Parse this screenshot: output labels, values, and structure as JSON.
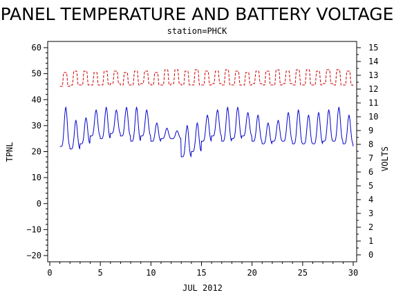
{
  "chart_data": {
    "type": "line",
    "title": "PANEL TEMPERATURE AND BATTERY VOLTAGE",
    "subtitle": "station=PHCK",
    "xlabel": "JUL 2012",
    "ylabel_left": "TPNL",
    "ylabel_right": "VOLTS",
    "xlim": [
      0,
      30
    ],
    "ylim_left": [
      -20,
      60
    ],
    "ylim_right": [
      0,
      15
    ],
    "x_ticks": [
      0,
      5,
      10,
      15,
      20,
      25,
      30
    ],
    "y_ticks_left": [
      -20,
      -10,
      0,
      10,
      20,
      30,
      40,
      50,
      60
    ],
    "y_ticks_right": [
      0,
      1,
      2,
      3,
      4,
      5,
      6,
      7,
      8,
      9,
      10,
      11,
      12,
      13,
      14,
      15
    ],
    "grid": false,
    "legend": "none",
    "series": [
      {
        "axis": "left",
        "color": "#0000cc",
        "style": "solid",
        "days_start": 1,
        "days_end": 30,
        "daily_min": [
          22,
          21,
          23,
          26,
          25,
          27,
          26,
          24,
          26,
          24,
          25,
          25,
          18,
          20,
          24,
          26,
          24,
          25,
          26,
          24,
          23,
          24,
          24,
          23,
          23,
          23,
          24,
          24,
          23,
          22
        ],
        "daily_max": [
          37,
          32,
          33,
          36,
          37,
          36,
          37,
          37,
          36,
          31,
          29,
          28,
          30,
          31,
          34,
          36,
          37,
          37,
          35,
          34,
          31,
          32,
          35,
          36,
          34,
          35,
          36,
          37,
          34,
          34
        ]
      },
      {
        "axis": "right",
        "color": "#cc0000",
        "style": "dashed",
        "days_start": 1,
        "days_end": 30,
        "daily_min": [
          12.2,
          12.3,
          12.3,
          12.3,
          12.3,
          12.4,
          12.3,
          12.3,
          12.4,
          12.3,
          12.3,
          12.4,
          12.3,
          12.3,
          12.3,
          12.4,
          12.3,
          12.3,
          12.3,
          12.4,
          12.3,
          12.3,
          12.4,
          12.3,
          12.3,
          12.3,
          12.4,
          12.3,
          12.3,
          12.2
        ],
        "daily_max": [
          13.2,
          13.3,
          13.3,
          13.2,
          13.3,
          13.3,
          13.2,
          13.3,
          13.3,
          13.2,
          13.4,
          13.4,
          13.3,
          13.4,
          13.3,
          13.3,
          13.4,
          13.3,
          13.2,
          13.3,
          13.3,
          13.4,
          13.3,
          13.4,
          13.4,
          13.3,
          13.4,
          13.4,
          13.3,
          13.4
        ]
      }
    ]
  }
}
